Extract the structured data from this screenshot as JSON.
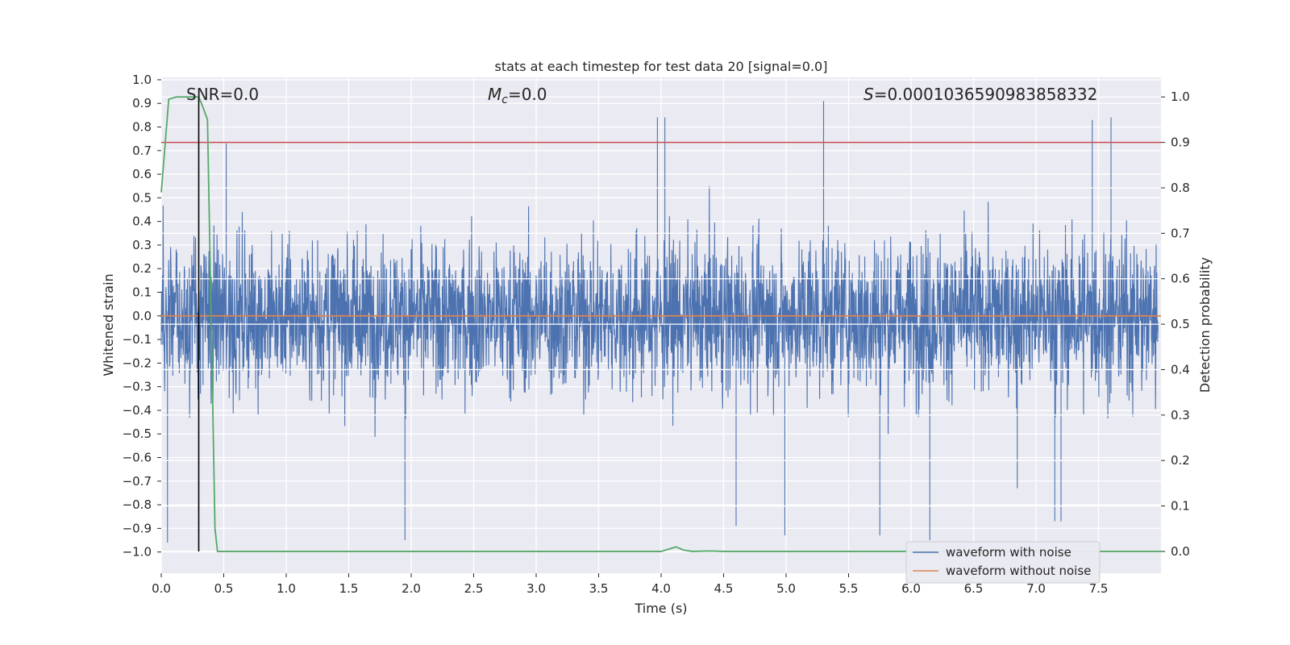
{
  "chart_data": {
    "type": "line",
    "title": "stats at each timestep for test data 20 [signal=0.0]",
    "xlabel": "Time (s)",
    "ylabel_left": "Whitened strain",
    "ylabel_right": "Detection probability",
    "xlim": [
      0.0,
      8.0
    ],
    "ylim_left": [
      -1.09,
      1.01
    ],
    "ylim_right": [
      -0.048,
      1.043
    ],
    "x_ticks": [
      0.0,
      0.5,
      1.0,
      1.5,
      2.0,
      2.5,
      3.0,
      3.5,
      4.0,
      4.5,
      5.0,
      5.5,
      6.0,
      6.5,
      7.0,
      7.5
    ],
    "x_tick_labels": [
      "0.0",
      "0.5",
      "1.0",
      "1.5",
      "2.0",
      "2.5",
      "3.0",
      "3.5",
      "4.0",
      "4.5",
      "5.0",
      "5.5",
      "6.0",
      "6.5",
      "7.0",
      "7.5"
    ],
    "y_left_ticks": [
      1.0,
      0.9,
      0.8,
      0.7,
      0.6,
      0.5,
      0.4,
      0.3,
      0.2,
      0.1,
      0.0,
      -0.1,
      -0.2,
      -0.3,
      -0.4,
      -0.5,
      -0.6,
      -0.7,
      -0.8,
      -0.9,
      -1.0
    ],
    "y_left_tick_labels": [
      "1.0",
      "0.9",
      "0.8",
      "0.7",
      "0.6",
      "0.5",
      "0.4",
      "0.3",
      "0.2",
      "0.1",
      "0.0",
      "−0.1",
      "−0.2",
      "−0.3",
      "−0.4",
      "−0.5",
      "−0.6",
      "−0.7",
      "−0.8",
      "−0.9",
      "−1.0"
    ],
    "y_right_ticks": [
      1.0,
      0.9,
      0.8,
      0.7,
      0.6,
      0.5,
      0.4,
      0.3,
      0.2,
      0.1,
      0.0
    ],
    "y_right_tick_labels": [
      "1.0",
      "0.9",
      "0.8",
      "0.7",
      "0.6",
      "0.5",
      "0.4",
      "0.3",
      "0.2",
      "0.1",
      "0.0"
    ],
    "annotations": {
      "snr": "SNR=0.0",
      "mc_symbol": "M",
      "mc_sub": "c",
      "mc_value": "=0.0",
      "s_symbol": "S",
      "s_value": "=0.0001036590983858332"
    },
    "threshold": {
      "axis": "right",
      "value": 0.9
    },
    "marker_time": 0.3,
    "series": [
      {
        "name": "waveform with noise",
        "axis": "left",
        "color": "#4c72b0",
        "description": "dense noise, mostly within ±0.45 with spikes to ±0.9",
        "notable_peaks": [
          [
            0.05,
            -0.96
          ],
          [
            0.52,
            0.73
          ],
          [
            1.95,
            -0.95
          ],
          [
            3.97,
            0.84
          ],
          [
            4.03,
            0.84
          ],
          [
            4.6,
            -0.89
          ],
          [
            4.99,
            -0.93
          ],
          [
            5.3,
            0.91
          ],
          [
            5.75,
            -0.93
          ],
          [
            6.15,
            -0.95
          ],
          [
            6.85,
            -0.73
          ],
          [
            7.15,
            -0.87
          ],
          [
            7.2,
            -0.87
          ],
          [
            7.45,
            0.83
          ],
          [
            7.6,
            0.84
          ]
        ]
      },
      {
        "name": "waveform without noise",
        "axis": "left",
        "color": "#dd8452",
        "x": [
          0.0,
          8.0
        ],
        "y": [
          0.0,
          0.0
        ]
      },
      {
        "name": "detection probability",
        "axis": "right",
        "color": "#55a868",
        "x": [
          0.0,
          0.06,
          0.12,
          0.2,
          0.25,
          0.3,
          0.33,
          0.37,
          0.4,
          0.43,
          0.45,
          0.5,
          1.0,
          2.0,
          3.0,
          3.9,
          4.0,
          4.06,
          4.12,
          4.18,
          4.25,
          4.4,
          4.5,
          5.0,
          6.0,
          7.0,
          8.0
        ],
        "y": [
          0.79,
          0.995,
          1.0,
          1.0,
          1.0,
          1.0,
          0.98,
          0.95,
          0.5,
          0.05,
          0.0,
          0.0,
          0.0,
          0.0,
          0.0,
          0.0,
          0.0,
          0.005,
          0.01,
          0.003,
          0.0,
          0.001,
          0.0,
          0.0,
          0.0,
          0.0,
          0.0
        ]
      }
    ],
    "legend": [
      "waveform with noise",
      "waveform without noise"
    ],
    "legend_position": "bottom-right"
  },
  "colors": {
    "plot_bg": "#eaeaf2",
    "grid": "#ffffff",
    "noise": "#4c72b0",
    "clean": "#dd8452",
    "probability": "#55a868",
    "threshold": "#c44e52",
    "marker": "#000000"
  }
}
